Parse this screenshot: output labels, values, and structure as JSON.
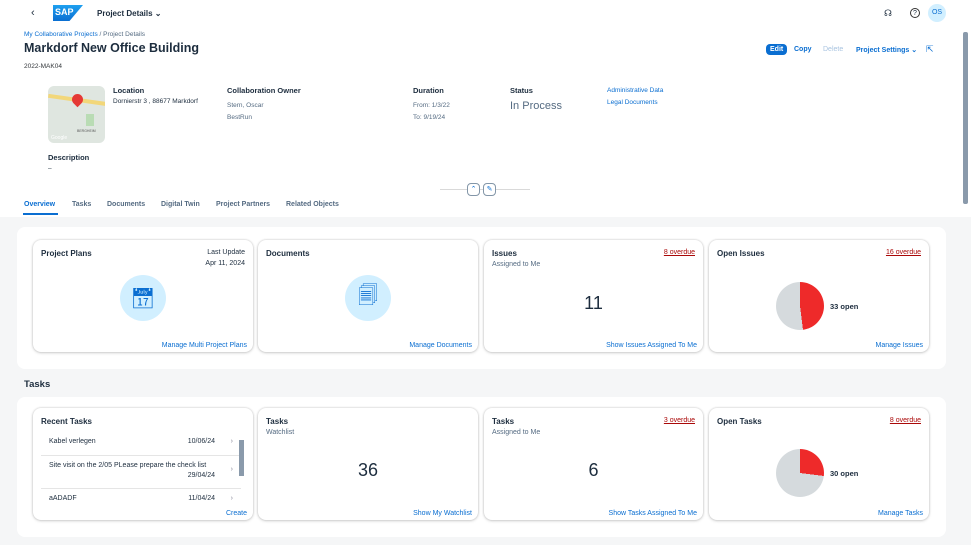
{
  "shell": {
    "title": "Project Details",
    "logo": "SAP",
    "avatar": "OS"
  },
  "breadcrumb": {
    "parent": "My Collaborative Projects",
    "separator": " / ",
    "current": "Project Details"
  },
  "header": {
    "title": "Markdorf New Office Building",
    "id": "2022-MAK04",
    "actions": {
      "edit": "Edit",
      "copy": "Copy",
      "delete": "Delete",
      "settings": "Project Settings"
    }
  },
  "details": {
    "location_label": "Location",
    "location": "Dornierstr 3 , 88677 Markdorf",
    "map_label": "BERGHEIM",
    "map_brand": "Google",
    "owner_label": "Collaboration Owner",
    "owner_name": "Stern, Oscar",
    "owner_company": "BestRun",
    "duration_label": "Duration",
    "from": "From: 1/3/22",
    "to": "To: 9/19/24",
    "status_label": "Status",
    "status": "In Process",
    "links": [
      "Administrative Data",
      "Legal Documents"
    ],
    "description_label": "Description",
    "description": "–"
  },
  "tabs": [
    "Overview",
    "Tasks",
    "Documents",
    "Digital Twin",
    "Project Partners",
    "Related Objects"
  ],
  "overview": {
    "plans": {
      "title": "Project Plans",
      "update_label": "Last Update",
      "update": "Apr 11, 2024",
      "footer": "Manage Multi Project Plans"
    },
    "documents": {
      "title": "Documents",
      "footer": "Manage Documents"
    },
    "issues": {
      "title": "Issues",
      "subtitle": "Assigned to Me",
      "overdue": "8 overdue",
      "value": "11",
      "footer": "Show Issues Assigned To Me"
    },
    "open_issues": {
      "title": "Open Issues",
      "overdue": "16 overdue",
      "label": "33 open",
      "fraction": 0.48,
      "footer": "Manage Issues"
    }
  },
  "tasks_section": {
    "title": "Tasks",
    "recent": {
      "title": "Recent Tasks",
      "items": [
        {
          "name": "Kabel verlegen",
          "date": "10/06/24"
        },
        {
          "name": "Site visit on the 2/05 PLease prepare the check list",
          "date": "29/04/24"
        },
        {
          "name": "aADADF",
          "date": "11/04/24"
        }
      ],
      "footer": "Create"
    },
    "watchlist": {
      "title": "Tasks",
      "subtitle": "Watchlist",
      "value": "36",
      "footer": "Show My Watchlist"
    },
    "assigned": {
      "title": "Tasks",
      "subtitle": "Assigned to Me",
      "overdue": "3 overdue",
      "value": "6",
      "footer": "Show Tasks Assigned To Me"
    },
    "open": {
      "title": "Open Tasks",
      "overdue": "8 overdue",
      "label": "30 open",
      "fraction": 0.27,
      "footer": "Manage Tasks"
    }
  },
  "colors": {
    "accent": "#0a6ed1",
    "overdue": "#aa0808",
    "pie_red": "#ee2a2a",
    "pie_gray": "#d5dadd"
  }
}
